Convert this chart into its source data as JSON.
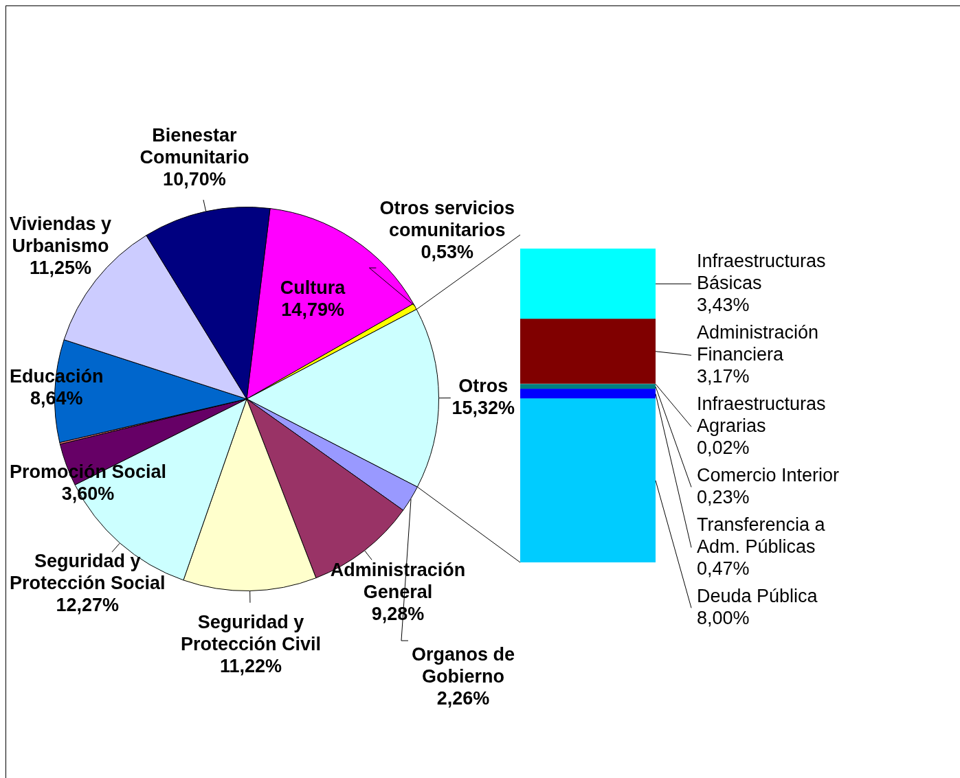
{
  "chart_data": [
    {
      "type": "pie",
      "categories": [
        "Cultura",
        "Otros servicios comunitarios",
        "Otros",
        "Organos de Gobierno",
        "Administración General",
        "Seguridad y Protección Civil",
        "Seguridad y Protección Social",
        "Promoción Social",
        null,
        "Educación",
        "Viviendas y Urbanismo",
        "Bienestar Comunitario"
      ],
      "values": [
        14.79,
        0.53,
        15.32,
        2.26,
        9.28,
        11.22,
        12.27,
        3.6,
        0.14,
        8.64,
        11.25,
        10.7
      ],
      "colors": [
        "#ff00ff",
        "#ffff00",
        "#ccffff",
        "#9999ff",
        "#993366",
        "#ffffcc",
        "#ccffff",
        "#660066",
        "#ff8080",
        "#0066cc",
        "#ccccff",
        "#000080"
      ],
      "value_labels": [
        "14,79%",
        "0,53%",
        "15,32%",
        "2,26%",
        "9,28%",
        "11,22%",
        "12,27%",
        "3,60%",
        null,
        "8,64%",
        "11,25%",
        "10,70%"
      ]
    },
    {
      "type": "bar",
      "stacked": true,
      "categories": [
        null
      ],
      "tick_labels": false,
      "series": [
        {
          "name": "Deuda Pública",
          "color": "#00ccff",
          "values": [
            8.0
          ],
          "value_labels": [
            "8,00%"
          ]
        },
        {
          "name": "Transferencia a Adm. Públicas",
          "color": "#0000ff",
          "values": [
            0.47
          ],
          "value_labels": [
            "0,47%"
          ]
        },
        {
          "name": "Comercio Interior",
          "color": "#008080",
          "values": [
            0.23
          ],
          "value_labels": [
            "0,23%"
          ]
        },
        {
          "name": "Infraestructuras Agrarias",
          "color": "#c0c0c0",
          "values": [
            0.02
          ],
          "value_labels": [
            "0,02%"
          ]
        },
        {
          "name": "Administración Financiera",
          "color": "#800000",
          "values": [
            3.17
          ],
          "value_labels": [
            "3,17%"
          ]
        },
        {
          "name": "Infraestructuras Básicas",
          "color": "#00ffff",
          "values": [
            3.43
          ],
          "value_labels": [
            "3,43%"
          ]
        }
      ]
    }
  ]
}
